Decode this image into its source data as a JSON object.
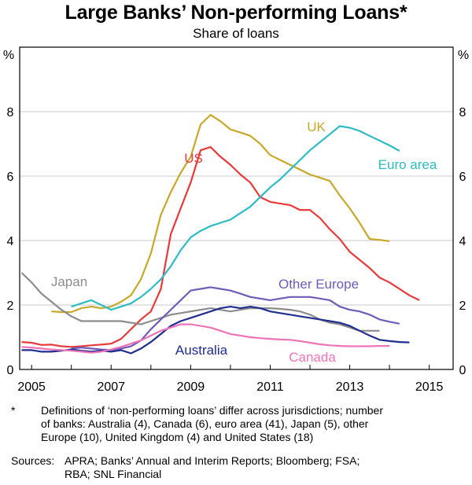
{
  "title": "Large Banks’ Non-performing Loans*",
  "subtitle": "Share of loans",
  "chart_data": {
    "type": "line",
    "title": "Large Banks’ Non-performing Loans*",
    "subtitle": "Share of loans",
    "y_unit_left": "%",
    "y_unit_right": "%",
    "xlim": [
      2004.7,
      2015.6
    ],
    "ylim": [
      0,
      10
    ],
    "x_ticks": [
      2005,
      2007,
      2009,
      2011,
      2013,
      2015
    ],
    "y_ticks": [
      0,
      2,
      4,
      6,
      8
    ],
    "grid": true,
    "legend": "inline labels",
    "series": [
      {
        "name": "US",
        "color": "#e8393b",
        "points": [
          [
            2004.75,
            0.85
          ],
          [
            2005.0,
            0.83
          ],
          [
            2005.25,
            0.76
          ],
          [
            2005.5,
            0.77
          ],
          [
            2005.75,
            0.72
          ],
          [
            2006.0,
            0.7
          ],
          [
            2006.25,
            0.72
          ],
          [
            2006.5,
            0.75
          ],
          [
            2006.75,
            0.77
          ],
          [
            2007.0,
            0.8
          ],
          [
            2007.25,
            0.95
          ],
          [
            2007.5,
            1.25
          ],
          [
            2007.75,
            1.55
          ],
          [
            2008.0,
            1.8
          ],
          [
            2008.25,
            2.5
          ],
          [
            2008.5,
            4.2
          ],
          [
            2008.75,
            5.0
          ],
          [
            2009.0,
            5.8
          ],
          [
            2009.25,
            6.8
          ],
          [
            2009.5,
            6.9
          ],
          [
            2009.75,
            6.6
          ],
          [
            2010.0,
            6.35
          ],
          [
            2010.25,
            6.05
          ],
          [
            2010.5,
            5.8
          ],
          [
            2010.75,
            5.35
          ],
          [
            2011.0,
            5.2
          ],
          [
            2011.25,
            5.15
          ],
          [
            2011.5,
            5.1
          ],
          [
            2011.75,
            4.95
          ],
          [
            2012.0,
            4.95
          ],
          [
            2012.25,
            4.7
          ],
          [
            2012.5,
            4.35
          ],
          [
            2012.75,
            4.05
          ],
          [
            2013.0,
            3.65
          ],
          [
            2013.25,
            3.4
          ],
          [
            2013.5,
            3.15
          ],
          [
            2013.75,
            2.85
          ],
          [
            2014.0,
            2.7
          ],
          [
            2014.25,
            2.5
          ],
          [
            2014.5,
            2.3
          ],
          [
            2014.75,
            2.15
          ]
        ]
      },
      {
        "name": "UK",
        "color": "#c8a82a",
        "points": [
          [
            2005.5,
            1.8
          ],
          [
            2005.75,
            1.78
          ],
          [
            2006.0,
            1.78
          ],
          [
            2006.25,
            1.9
          ],
          [
            2006.5,
            1.95
          ],
          [
            2006.75,
            1.9
          ],
          [
            2007.0,
            1.95
          ],
          [
            2007.25,
            2.1
          ],
          [
            2007.5,
            2.3
          ],
          [
            2007.75,
            2.8
          ],
          [
            2008.0,
            3.6
          ],
          [
            2008.25,
            4.8
          ],
          [
            2008.5,
            5.5
          ],
          [
            2008.75,
            6.1
          ],
          [
            2009.0,
            6.6
          ],
          [
            2009.25,
            7.6
          ],
          [
            2009.5,
            7.9
          ],
          [
            2009.75,
            7.7
          ],
          [
            2010.0,
            7.45
          ],
          [
            2010.25,
            7.35
          ],
          [
            2010.5,
            7.25
          ],
          [
            2010.75,
            7.0
          ],
          [
            2011.0,
            6.65
          ],
          [
            2011.25,
            6.5
          ],
          [
            2011.5,
            6.35
          ],
          [
            2011.75,
            6.2
          ],
          [
            2012.0,
            6.05
          ],
          [
            2012.25,
            5.95
          ],
          [
            2012.5,
            5.85
          ],
          [
            2012.75,
            5.4
          ],
          [
            2013.0,
            5.0
          ],
          [
            2013.25,
            4.55
          ],
          [
            2013.5,
            4.05
          ],
          [
            2013.75,
            4.02
          ],
          [
            2014.0,
            3.98
          ]
        ]
      },
      {
        "name": "Euro area",
        "color": "#2ebcc4",
        "points": [
          [
            2006.0,
            1.95
          ],
          [
            2006.25,
            2.05
          ],
          [
            2006.5,
            2.15
          ],
          [
            2006.75,
            2.0
          ],
          [
            2007.0,
            1.85
          ],
          [
            2007.25,
            1.95
          ],
          [
            2007.5,
            2.05
          ],
          [
            2007.75,
            2.25
          ],
          [
            2008.0,
            2.5
          ],
          [
            2008.25,
            2.8
          ],
          [
            2008.5,
            3.2
          ],
          [
            2008.75,
            3.7
          ],
          [
            2009.0,
            4.1
          ],
          [
            2009.25,
            4.3
          ],
          [
            2009.5,
            4.45
          ],
          [
            2009.75,
            4.55
          ],
          [
            2010.0,
            4.65
          ],
          [
            2010.25,
            4.85
          ],
          [
            2010.5,
            5.05
          ],
          [
            2010.75,
            5.35
          ],
          [
            2011.0,
            5.65
          ],
          [
            2011.25,
            5.9
          ],
          [
            2011.5,
            6.2
          ],
          [
            2011.75,
            6.5
          ],
          [
            2012.0,
            6.8
          ],
          [
            2012.25,
            7.05
          ],
          [
            2012.5,
            7.3
          ],
          [
            2012.75,
            7.55
          ],
          [
            2013.0,
            7.5
          ],
          [
            2013.25,
            7.4
          ],
          [
            2013.5,
            7.25
          ],
          [
            2013.75,
            7.1
          ],
          [
            2014.0,
            6.95
          ],
          [
            2014.25,
            6.78
          ]
        ]
      },
      {
        "name": "Japan",
        "color": "#8c8c8c",
        "points": [
          [
            2004.75,
            3.0
          ],
          [
            2005.0,
            2.7
          ],
          [
            2005.25,
            2.35
          ],
          [
            2005.5,
            2.1
          ],
          [
            2005.75,
            1.85
          ],
          [
            2006.0,
            1.65
          ],
          [
            2006.25,
            1.5
          ],
          [
            2006.5,
            1.5
          ],
          [
            2006.75,
            1.5
          ],
          [
            2007.0,
            1.5
          ],
          [
            2007.25,
            1.5
          ],
          [
            2007.5,
            1.45
          ],
          [
            2007.75,
            1.4
          ],
          [
            2008.0,
            1.5
          ],
          [
            2008.25,
            1.6
          ],
          [
            2008.5,
            1.7
          ],
          [
            2008.75,
            1.75
          ],
          [
            2009.0,
            1.8
          ],
          [
            2009.25,
            1.85
          ],
          [
            2009.5,
            1.9
          ],
          [
            2009.75,
            1.85
          ],
          [
            2010.0,
            1.8
          ],
          [
            2010.25,
            1.85
          ],
          [
            2010.5,
            1.9
          ],
          [
            2010.75,
            1.9
          ],
          [
            2011.0,
            1.9
          ],
          [
            2011.25,
            1.88
          ],
          [
            2011.5,
            1.85
          ],
          [
            2011.75,
            1.8
          ],
          [
            2012.0,
            1.7
          ],
          [
            2012.25,
            1.55
          ],
          [
            2012.5,
            1.45
          ],
          [
            2012.75,
            1.4
          ],
          [
            2013.0,
            1.3
          ],
          [
            2013.25,
            1.2
          ],
          [
            2013.5,
            1.2
          ],
          [
            2013.75,
            1.2
          ]
        ]
      },
      {
        "name": "Other Europe",
        "color": "#6f5bb8",
        "points": [
          [
            2006.0,
            0.65
          ],
          [
            2006.25,
            0.68
          ],
          [
            2006.5,
            0.65
          ],
          [
            2006.75,
            0.62
          ],
          [
            2007.0,
            0.6
          ],
          [
            2007.25,
            0.65
          ],
          [
            2007.5,
            0.72
          ],
          [
            2007.75,
            0.9
          ],
          [
            2008.0,
            1.25
          ],
          [
            2008.25,
            1.55
          ],
          [
            2008.5,
            1.85
          ],
          [
            2008.75,
            2.15
          ],
          [
            2009.0,
            2.45
          ],
          [
            2009.25,
            2.5
          ],
          [
            2009.5,
            2.55
          ],
          [
            2009.75,
            2.5
          ],
          [
            2010.0,
            2.45
          ],
          [
            2010.25,
            2.35
          ],
          [
            2010.5,
            2.25
          ],
          [
            2010.75,
            2.2
          ],
          [
            2011.0,
            2.15
          ],
          [
            2011.25,
            2.2
          ],
          [
            2011.5,
            2.25
          ],
          [
            2011.75,
            2.25
          ],
          [
            2012.0,
            2.25
          ],
          [
            2012.25,
            2.2
          ],
          [
            2012.5,
            2.15
          ],
          [
            2012.75,
            1.95
          ],
          [
            2013.0,
            1.85
          ],
          [
            2013.25,
            1.8
          ],
          [
            2013.5,
            1.7
          ],
          [
            2013.75,
            1.55
          ],
          [
            2014.0,
            1.48
          ],
          [
            2014.25,
            1.42
          ]
        ]
      },
      {
        "name": "Australia",
        "color": "#1f2e8f",
        "points": [
          [
            2004.75,
            0.6
          ],
          [
            2005.0,
            0.6
          ],
          [
            2005.25,
            0.55
          ],
          [
            2005.5,
            0.55
          ],
          [
            2005.75,
            0.58
          ],
          [
            2006.0,
            0.62
          ],
          [
            2006.25,
            0.58
          ],
          [
            2006.5,
            0.55
          ],
          [
            2006.75,
            0.58
          ],
          [
            2007.0,
            0.55
          ],
          [
            2007.25,
            0.6
          ],
          [
            2007.5,
            0.5
          ],
          [
            2007.75,
            0.65
          ],
          [
            2008.0,
            0.85
          ],
          [
            2008.25,
            1.1
          ],
          [
            2008.5,
            1.35
          ],
          [
            2008.75,
            1.5
          ],
          [
            2009.0,
            1.6
          ],
          [
            2009.25,
            1.7
          ],
          [
            2009.5,
            1.8
          ],
          [
            2009.75,
            1.9
          ],
          [
            2010.0,
            1.95
          ],
          [
            2010.25,
            1.9
          ],
          [
            2010.5,
            1.95
          ],
          [
            2010.75,
            1.9
          ],
          [
            2011.0,
            1.8
          ],
          [
            2011.25,
            1.75
          ],
          [
            2011.5,
            1.7
          ],
          [
            2011.75,
            1.65
          ],
          [
            2012.0,
            1.6
          ],
          [
            2012.25,
            1.55
          ],
          [
            2012.5,
            1.5
          ],
          [
            2012.75,
            1.45
          ],
          [
            2013.0,
            1.35
          ],
          [
            2013.25,
            1.2
          ],
          [
            2013.5,
            1.05
          ],
          [
            2013.75,
            0.92
          ],
          [
            2014.0,
            0.88
          ],
          [
            2014.25,
            0.85
          ],
          [
            2014.5,
            0.84
          ]
        ]
      },
      {
        "name": "Canada",
        "color": "#ee74b8",
        "points": [
          [
            2004.75,
            0.7
          ],
          [
            2005.0,
            0.68
          ],
          [
            2005.25,
            0.65
          ],
          [
            2005.5,
            0.62
          ],
          [
            2005.75,
            0.6
          ],
          [
            2006.0,
            0.58
          ],
          [
            2006.25,
            0.55
          ],
          [
            2006.5,
            0.52
          ],
          [
            2006.75,
            0.55
          ],
          [
            2007.0,
            0.62
          ],
          [
            2007.25,
            0.7
          ],
          [
            2007.5,
            0.8
          ],
          [
            2007.75,
            0.9
          ],
          [
            2008.0,
            1.05
          ],
          [
            2008.25,
            1.2
          ],
          [
            2008.5,
            1.3
          ],
          [
            2008.75,
            1.4
          ],
          [
            2009.0,
            1.4
          ],
          [
            2009.25,
            1.35
          ],
          [
            2009.5,
            1.3
          ],
          [
            2009.75,
            1.2
          ],
          [
            2010.0,
            1.1
          ],
          [
            2010.25,
            1.05
          ],
          [
            2010.5,
            1.0
          ],
          [
            2010.75,
            0.97
          ],
          [
            2011.0,
            0.95
          ],
          [
            2011.25,
            0.93
          ],
          [
            2011.5,
            0.92
          ],
          [
            2011.75,
            0.88
          ],
          [
            2012.0,
            0.83
          ],
          [
            2012.25,
            0.78
          ],
          [
            2012.5,
            0.75
          ],
          [
            2012.75,
            0.73
          ],
          [
            2013.0,
            0.72
          ],
          [
            2013.25,
            0.72
          ],
          [
            2013.5,
            0.72
          ],
          [
            2013.75,
            0.73
          ],
          [
            2014.0,
            0.73
          ]
        ]
      }
    ]
  },
  "footnote": {
    "marker": "*",
    "lines": [
      "Definitions of ‘non-performing loans’ differ across jurisdictions; number",
      "of banks: Australia (4), Canada (6), euro area (41), Japan (5), other",
      "Europe (10), United Kingdom (4) and United States (18)"
    ]
  },
  "sources": {
    "label": "Sources:",
    "lines": [
      "APRA; Banks’ Annual and Interim Reports; Bloomberg; FSA;",
      "RBA; SNL Financial"
    ]
  }
}
